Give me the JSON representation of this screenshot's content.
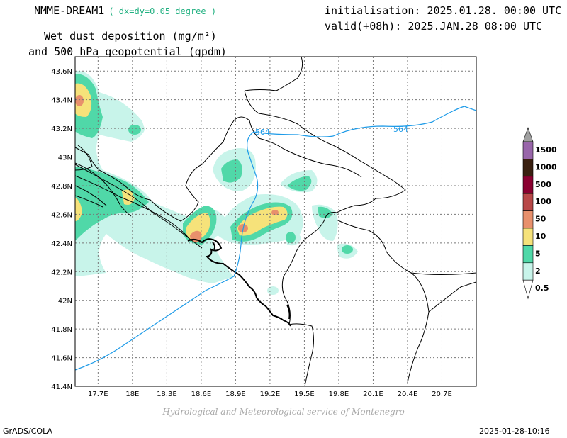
{
  "header": {
    "model": "NMME-DREAM1",
    "resolution": "( dx=dy=0.05 degree )",
    "title_line1": "Wet dust deposition (mg/m²)",
    "title_line2": "and 500 hPa geopotential (gpdm)",
    "init": "initialisation: 2025.01.28. 00:00 UTC",
    "valid": "valid(+08h): 2025.JAN.28 08:00 UTC"
  },
  "map": {
    "lon_min": 17.5,
    "lon_max": 21.0,
    "lat_min": 41.4,
    "lat_max": 43.7,
    "lon_ticks": [
      "17.7E",
      "18E",
      "18.3E",
      "18.6E",
      "18.9E",
      "19.2E",
      "19.5E",
      "19.8E",
      "20.1E",
      "20.4E",
      "20.7E"
    ],
    "lon_values": [
      17.7,
      18.0,
      18.3,
      18.6,
      18.9,
      19.2,
      19.5,
      19.8,
      20.1,
      20.4,
      20.7
    ],
    "lat_ticks": [
      "41.4N",
      "41.6N",
      "41.8N",
      "42N",
      "42.2N",
      "42.4N",
      "42.6N",
      "42.8N",
      "43N",
      "43.2N",
      "43.4N",
      "43.6N"
    ],
    "lat_values": [
      41.4,
      41.6,
      41.8,
      42.0,
      42.2,
      42.4,
      42.6,
      42.8,
      43.0,
      43.2,
      43.4,
      43.6
    ],
    "grid": true,
    "contour_labels": [
      "564",
      "564"
    ],
    "contour_color": "#1e9be8"
  },
  "legend": {
    "levels": [
      "1500",
      "1000",
      "500",
      "100",
      "50",
      "10",
      "5",
      "2",
      "0.5"
    ],
    "colors": [
      "#a0a0a0",
      "#9966aa",
      "#3a2010",
      "#8a0030",
      "#b84848",
      "#e8906c",
      "#f6e27a",
      "#50d8a8",
      "#c8f4ea"
    ]
  },
  "footer": {
    "credit": "Hydrological and Meteorological service of Montenegro",
    "software": "GrADS/COLA",
    "timestamp": "2025-01-28-10:16"
  }
}
